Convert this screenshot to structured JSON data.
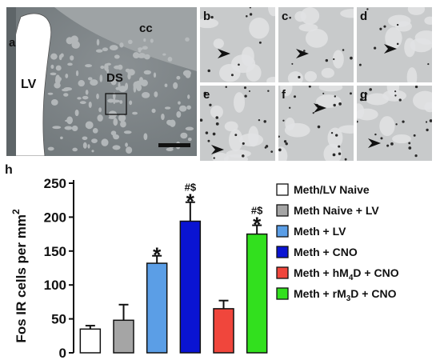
{
  "panels": {
    "a": {
      "label": "a",
      "regions": {
        "lv": "LV",
        "ds": "DS",
        "cc": "cc"
      }
    },
    "insets": [
      "b",
      "c",
      "d",
      "e",
      "f",
      "g"
    ]
  },
  "colors": {
    "tissue": "#7d8487",
    "ventricle": "#ffffff",
    "inset_bg": "#c8cacb",
    "arrow": "#111111"
  },
  "chart_data": {
    "type": "bar",
    "panel_label": "h",
    "ylabel": "Fos IR cells per mm",
    "ylabel_superscript": "2",
    "ylim": [
      0,
      250
    ],
    "yticks": [
      0,
      50,
      100,
      150,
      200,
      250
    ],
    "categories": [
      "Meth/LV Naive",
      "Meth Naive + LV",
      "Meth + LV",
      "Meth + CNO",
      "Meth + hM4D + CNO",
      "Meth + rM3D + CNO"
    ],
    "values": [
      35,
      48,
      132,
      194,
      65,
      175
    ],
    "errors": [
      5,
      23,
      11,
      28,
      12,
      13
    ],
    "colors": [
      "#ffffff",
      "#a5a5a5",
      "#5b9ee6",
      "#0a14d2",
      "#f0463c",
      "#32e01e"
    ],
    "annotations": [
      "",
      "",
      "*",
      "#$\n*",
      "",
      "#$\n*"
    ],
    "legend": {
      "placement": "right",
      "entries": [
        {
          "text": "Meth/LV Naive"
        },
        {
          "text": "Meth Naive + LV"
        },
        {
          "text": "Meth + LV"
        },
        {
          "text": "Meth + CNO"
        },
        {
          "text": "Meth + hM",
          "sub": "4",
          "rest": "D + CNO"
        },
        {
          "text": "Meth + rM",
          "sub": "3",
          "rest": "D + CNO"
        }
      ]
    },
    "grid": false
  }
}
